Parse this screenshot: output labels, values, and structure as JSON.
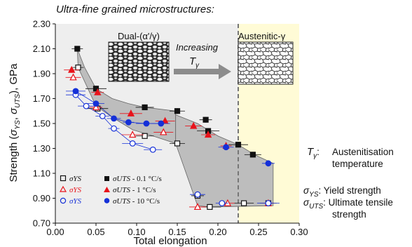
{
  "chart_data": {
    "type": "scatter",
    "title": "Ultra-fine grained  microstructures:",
    "xlabel": "Total elongation",
    "ylabel_parts": [
      "Strength (",
      "σ",
      "YS",
      ", ",
      "σ",
      "UTS",
      "), GPa"
    ],
    "xlim": [
      0.0,
      0.3
    ],
    "ylim": [
      0.7,
      2.3
    ],
    "xticks": [
      "0.00",
      "0.05",
      "0.10",
      "0.15",
      "0.20",
      "0.25",
      "0.30"
    ],
    "yticks": [
      "0.70",
      "0.90",
      "1.10",
      "1.30",
      "1.50",
      "1.70",
      "1.90",
      "2.10",
      "2.30"
    ],
    "regions": {
      "dual_label": "Dual-(α'/γ)",
      "austenitic_label": "Austenitic-γ",
      "boundary_x": 0.225,
      "austenitic_range": [
        0.225,
        0.3
      ],
      "increasing_label": "Increasing",
      "increasing_symbol": "T",
      "increasing_sub": "γ"
    },
    "colors": {
      "black": "#111111",
      "red": "#e8131b",
      "blue": "#1530d8",
      "gray_region": "#bdbdbd",
      "light_gray": "#eeeeee",
      "yellow": "#fffbd6",
      "arrow": "#8c8c8c"
    },
    "series": [
      {
        "name": "σYS",
        "rate": "",
        "marker": "square-open",
        "color": "#111111",
        "points": [
          [
            0.028,
            1.95
          ],
          [
            0.052,
            1.62
          ],
          [
            0.11,
            1.4
          ],
          [
            0.15,
            1.34
          ],
          [
            0.175,
            0.92
          ],
          [
            0.19,
            0.83
          ],
          [
            0.232,
            0.86
          ],
          [
            0.262,
            0.86
          ]
        ]
      },
      {
        "name": "σYS",
        "rate": "",
        "marker": "triangle-open",
        "color": "#e8131b",
        "points": [
          [
            0.022,
            1.87
          ],
          [
            0.05,
            1.63
          ],
          [
            0.095,
            1.41
          ],
          [
            0.133,
            1.43
          ],
          [
            0.175,
            0.83
          ],
          [
            0.212,
            0.86
          ],
          [
            0.262,
            0.86
          ]
        ]
      },
      {
        "name": "σYS",
        "rate": "",
        "marker": "circle-open",
        "color": "#1530d8",
        "points": [
          [
            0.025,
            1.73
          ],
          [
            0.038,
            1.64
          ],
          [
            0.058,
            1.56
          ],
          [
            0.072,
            1.46
          ],
          [
            0.095,
            1.34
          ],
          [
            0.12,
            1.29
          ],
          [
            0.175,
            0.93
          ],
          [
            0.205,
            0.86
          ],
          [
            0.262,
            0.86
          ]
        ]
      },
      {
        "name": "σUTS - 0.1 °C/s",
        "rate": "0.1 °C/s",
        "marker": "square-filled",
        "color": "#111111",
        "points": [
          [
            0.027,
            2.1
          ],
          [
            0.05,
            1.78
          ],
          [
            0.11,
            1.63
          ],
          [
            0.15,
            1.6
          ],
          [
            0.185,
            1.53
          ],
          [
            0.188,
            1.44
          ],
          [
            0.225,
            1.33
          ],
          [
            0.243,
            1.25
          ]
        ]
      },
      {
        "name": "σUTS - 1 °C/s",
        "rate": "1 °C/s",
        "marker": "triangle-filled",
        "color": "#e8131b",
        "points": [
          [
            0.02,
            1.93
          ],
          [
            0.052,
            1.75
          ],
          [
            0.093,
            1.58
          ],
          [
            0.135,
            1.52
          ],
          [
            0.17,
            1.48
          ],
          [
            0.188,
            1.41
          ],
          [
            0.21,
            1.32
          ]
        ]
      },
      {
        "name": "σUTS - 10 °C/s",
        "rate": "10 °C/s",
        "marker": "circle-filled",
        "color": "#1530d8",
        "points": [
          [
            0.025,
            1.76
          ],
          [
            0.05,
            1.66
          ],
          [
            0.072,
            1.54
          ],
          [
            0.09,
            1.51
          ],
          [
            0.112,
            1.5
          ],
          [
            0.13,
            1.5
          ],
          [
            0.21,
            1.31
          ],
          [
            0.262,
            1.18
          ]
        ]
      }
    ],
    "legend_rows": [
      {
        "ys": "σYS",
        "uts_sym": "σUTS",
        "uts_rate": " - 0.1 °C/s"
      },
      {
        "ys": "σYS",
        "uts_sym": "σUTS",
        "uts_rate": " - 1 °C/s"
      },
      {
        "ys": "σYS",
        "uts_sym": "σUTS",
        "uts_rate": " - 10 °C/s"
      }
    ]
  },
  "notes": {
    "t_symbol": "T",
    "t_sub": "γ",
    "t_colon": ":",
    "t_line1": "Austenitisation",
    "t_line2": "temperature",
    "ys_symbol": "σ",
    "ys_sub": "YS",
    "ys_text": ": Yield strength",
    "uts_symbol": "σ",
    "uts_sub": "UTS",
    "uts_text": ": Ultimate tensile",
    "uts_line2": "strength"
  }
}
